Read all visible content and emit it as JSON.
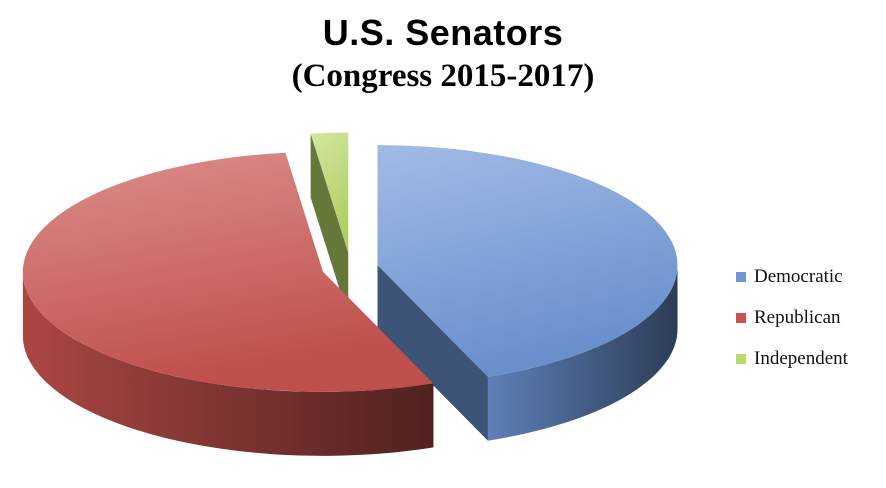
{
  "title": "U.S. Senators",
  "subtitle": "(Congress 2015-2017)",
  "chart_data": {
    "type": "pie",
    "style": "3d-exploded",
    "title": "U.S. Senators",
    "subtitle": "(Congress 2015-2017)",
    "categories": [
      "Democratic",
      "Republican",
      "Independent"
    ],
    "values": [
      44,
      54,
      2
    ],
    "colors": [
      "#6f97d8",
      "#c9534f",
      "#b9d96a"
    ],
    "legend_position": "right"
  }
}
